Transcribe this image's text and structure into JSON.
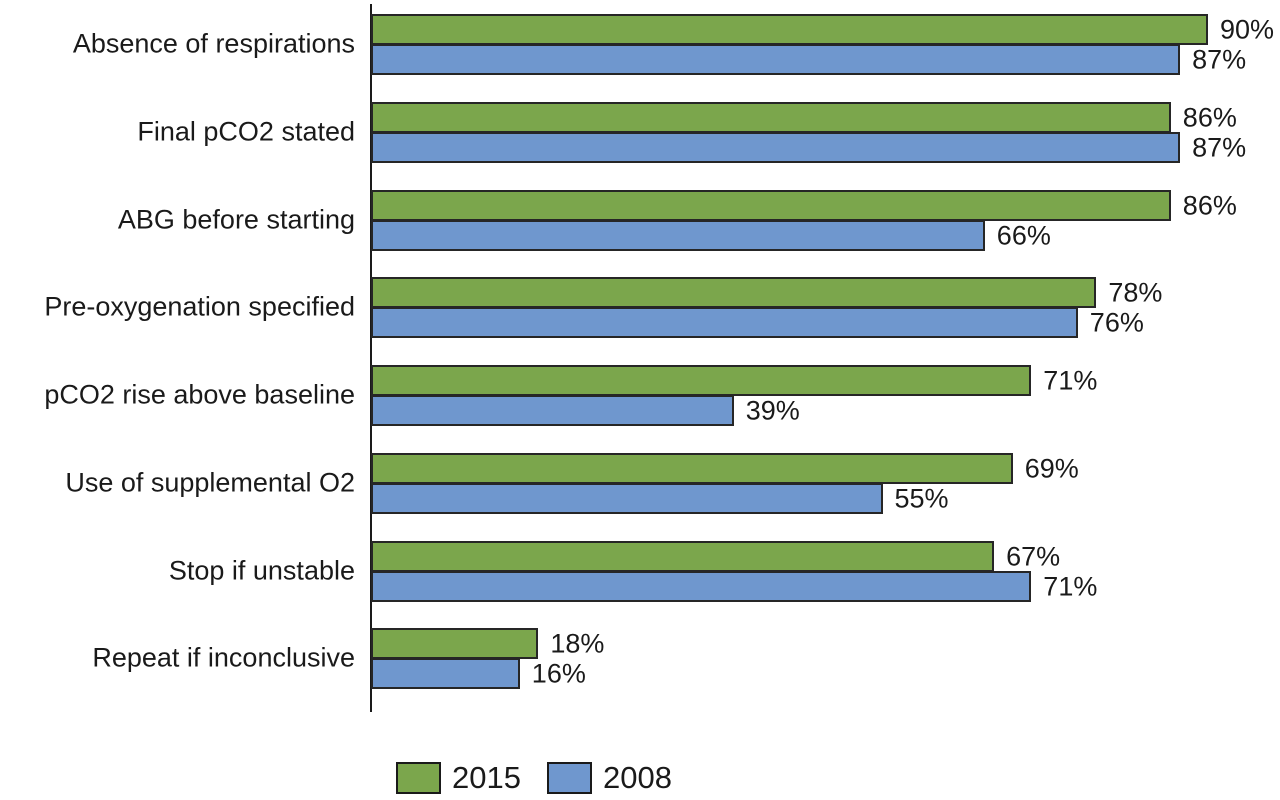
{
  "chart_data": {
    "type": "bar",
    "orientation": "horizontal",
    "title": "",
    "xlabel": "",
    "ylabel": "",
    "grid": false,
    "xlim": [
      0,
      100
    ],
    "value_suffix": "%",
    "legend_position": "bottom",
    "categories": [
      "Absence of respirations",
      "Final pCO2 stated",
      "ABG before starting",
      "Pre-oxygenation specified",
      "pCO2 rise above baseline",
      "Use of supplemental O2",
      "Stop if unstable",
      "Repeat if inconclusive"
    ],
    "series": [
      {
        "name": "2015",
        "color": "#7BA64C",
        "values": [
          90,
          86,
          86,
          78,
          71,
          69,
          67,
          18
        ]
      },
      {
        "name": "2008",
        "color": "#6F97CE",
        "values": [
          87,
          87,
          66,
          76,
          39,
          55,
          71,
          16
        ]
      }
    ]
  },
  "legend": {
    "items": [
      {
        "label": "2015",
        "color": "#7BA64C"
      },
      {
        "label": "2008",
        "color": "#6F97CE"
      }
    ]
  },
  "colors": {
    "bar_border": "#262626",
    "axis": "#1a1a1a",
    "text": "#1a1a1a",
    "background": "#ffffff"
  }
}
